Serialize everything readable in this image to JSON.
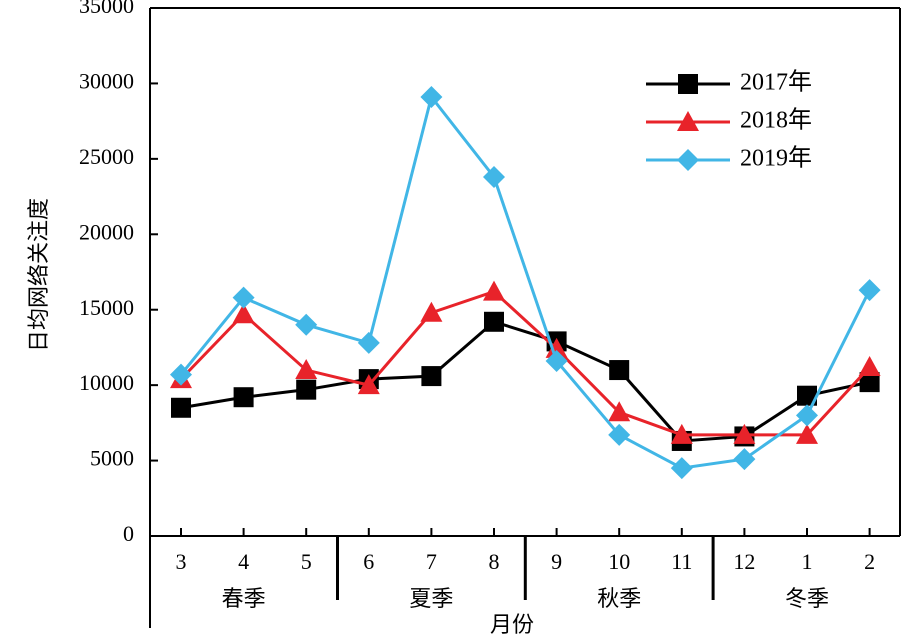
{
  "chart_data": {
    "type": "line",
    "xlabel": "月份",
    "ylabel": "日均网络关注度",
    "categories": [
      "3",
      "4",
      "5",
      "6",
      "7",
      "8",
      "9",
      "10",
      "11",
      "12",
      "1",
      "2"
    ],
    "seasons": [
      {
        "label": "春季",
        "months": [
          "3",
          "4",
          "5"
        ]
      },
      {
        "label": "夏季",
        "months": [
          "6",
          "7",
          "8"
        ]
      },
      {
        "label": "秋季",
        "months": [
          "9",
          "10",
          "11"
        ]
      },
      {
        "label": "冬季",
        "months": [
          "12",
          "1",
          "2"
        ]
      }
    ],
    "ylim": [
      0,
      35000
    ],
    "yticks": [
      0,
      5000,
      10000,
      15000,
      20000,
      25000,
      30000,
      35000
    ],
    "grid": false,
    "legend_position": "top-right",
    "series": [
      {
        "name": "2017年",
        "color": "#000000",
        "marker": "square",
        "values": [
          8500,
          9200,
          9700,
          10400,
          10600,
          14200,
          12900,
          11000,
          6300,
          6600,
          9300,
          10200
        ]
      },
      {
        "name": "2018年",
        "color": "#e8232a",
        "marker": "triangle",
        "values": [
          10400,
          14700,
          11000,
          10000,
          14800,
          16200,
          12400,
          8200,
          6700,
          6700,
          6700,
          11200
        ]
      },
      {
        "name": "2019年",
        "color": "#41b6e6",
        "marker": "diamond",
        "values": [
          10700,
          15800,
          14000,
          12800,
          29100,
          23800,
          11600,
          6700,
          4500,
          5100,
          8000,
          16300
        ]
      }
    ]
  }
}
